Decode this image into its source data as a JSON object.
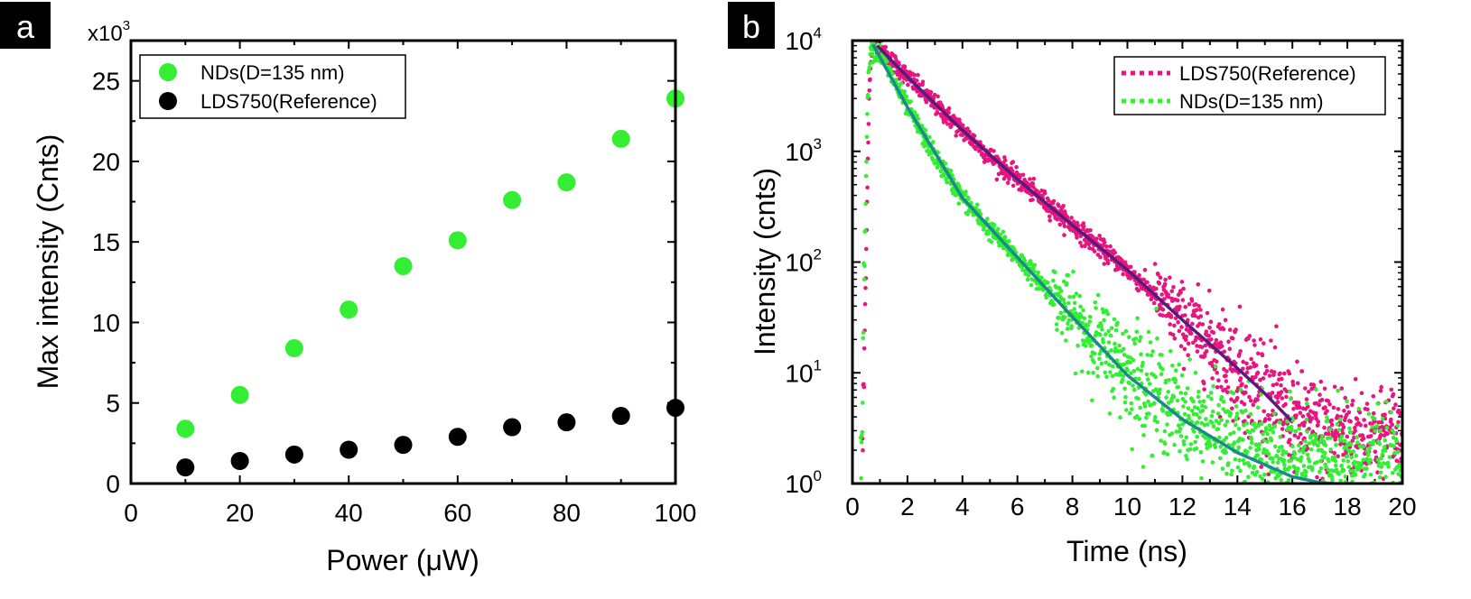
{
  "chart_data": [
    {
      "panel_label": "a",
      "type": "scatter",
      "xlabel": "Power (μW)",
      "ylabel": "Max intensity (Cnts)",
      "y_multiplier_base": "x10",
      "y_multiplier_exp": "3",
      "xlim": [
        0,
        100
      ],
      "ylim": [
        0,
        27.5
      ],
      "xticks": [
        0,
        20,
        40,
        60,
        80,
        100
      ],
      "yticks": [
        0,
        5,
        10,
        15,
        20,
        25
      ],
      "legend_position": "top-left",
      "x": [
        10,
        20,
        30,
        40,
        50,
        60,
        70,
        80,
        90,
        100
      ],
      "series": [
        {
          "name": "NDs(D=135 nm)",
          "color": "#33ee33",
          "values": [
            3.4,
            5.5,
            8.4,
            10.8,
            13.5,
            15.1,
            17.6,
            18.7,
            21.4,
            23.9
          ]
        },
        {
          "name": "LDS750(Reference)",
          "color": "#000000",
          "values": [
            1.0,
            1.4,
            1.8,
            2.1,
            2.4,
            2.9,
            3.5,
            3.8,
            4.2,
            4.7
          ]
        }
      ]
    },
    {
      "panel_label": "b",
      "type": "line",
      "xlabel": "Time (ns)",
      "ylabel": "Intensity (cnts)",
      "yscale": "log",
      "xlim": [
        0,
        20
      ],
      "ylim": [
        1,
        10000
      ],
      "xticks": [
        0,
        2,
        4,
        6,
        8,
        10,
        12,
        14,
        16,
        18,
        20
      ],
      "yticks": [
        {
          "base": "10",
          "exp": "0",
          "value": 1
        },
        {
          "base": "10",
          "exp": "1",
          "value": 10
        },
        {
          "base": "10",
          "exp": "2",
          "value": 100
        },
        {
          "base": "10",
          "exp": "3",
          "value": 1000
        },
        {
          "base": "10",
          "exp": "4",
          "value": 10000
        }
      ],
      "legend_position": "top-right",
      "series": [
        {
          "name": "LDS750(Reference)",
          "color": "#e8157f",
          "fit_color": "#5b1a7a",
          "points": [
            [
              0.35,
              1
            ],
            [
              0.6,
              3000
            ],
            [
              0.72,
              9500
            ],
            [
              1,
              8400
            ],
            [
              2,
              4700
            ],
            [
              3,
              2650
            ],
            [
              4,
              1550
            ],
            [
              5,
              900
            ],
            [
              6,
              560
            ],
            [
              7,
              350
            ],
            [
              8,
              215
            ],
            [
              9,
              135
            ],
            [
              10,
              85
            ],
            [
              11,
              50
            ],
            [
              12,
              30
            ],
            [
              13,
              19
            ],
            [
              14,
              11
            ],
            [
              15,
              6.5
            ],
            [
              16,
              4
            ],
            [
              17,
              3.2
            ],
            [
              18,
              3
            ],
            [
              19,
              2.9
            ],
            [
              20,
              2.8
            ]
          ],
          "fit": [
            [
              0.9,
              9000
            ],
            [
              2,
              4700
            ],
            [
              4,
              1550
            ],
            [
              6,
              560
            ],
            [
              8,
              215
            ],
            [
              10,
              85
            ],
            [
              12,
              30
            ],
            [
              14,
              11
            ],
            [
              15,
              6.5
            ],
            [
              16,
              3.6
            ]
          ]
        },
        {
          "name": "NDs(D=135 nm)",
          "color": "#33ee33",
          "fit_color": "#1a8a8a",
          "points": [
            [
              0.3,
              1.5
            ],
            [
              0.55,
              3000
            ],
            [
              0.65,
              8800
            ],
            [
              1,
              7500
            ],
            [
              2,
              2500
            ],
            [
              3,
              900
            ],
            [
              4,
              380
            ],
            [
              5,
              195
            ],
            [
              6,
              110
            ],
            [
              7,
              60
            ],
            [
              8,
              32
            ],
            [
              9,
              18
            ],
            [
              10,
              11
            ],
            [
              11,
              6.5
            ],
            [
              12,
              4.3
            ],
            [
              13,
              3
            ],
            [
              14,
              2.3
            ],
            [
              15,
              1.9
            ],
            [
              16,
              1.7
            ],
            [
              17,
              1.6
            ],
            [
              18,
              1.5
            ],
            [
              19,
              1.5
            ],
            [
              20,
              1.4
            ]
          ],
          "fit": [
            [
              0.75,
              9200
            ],
            [
              2,
              2500
            ],
            [
              4,
              380
            ],
            [
              6,
              110
            ],
            [
              8,
              32
            ],
            [
              10,
              9.5
            ],
            [
              12,
              3.8
            ],
            [
              14,
              1.9
            ],
            [
              16,
              1.15
            ],
            [
              17,
              1.02
            ],
            [
              18,
              0.98
            ]
          ]
        }
      ]
    }
  ]
}
